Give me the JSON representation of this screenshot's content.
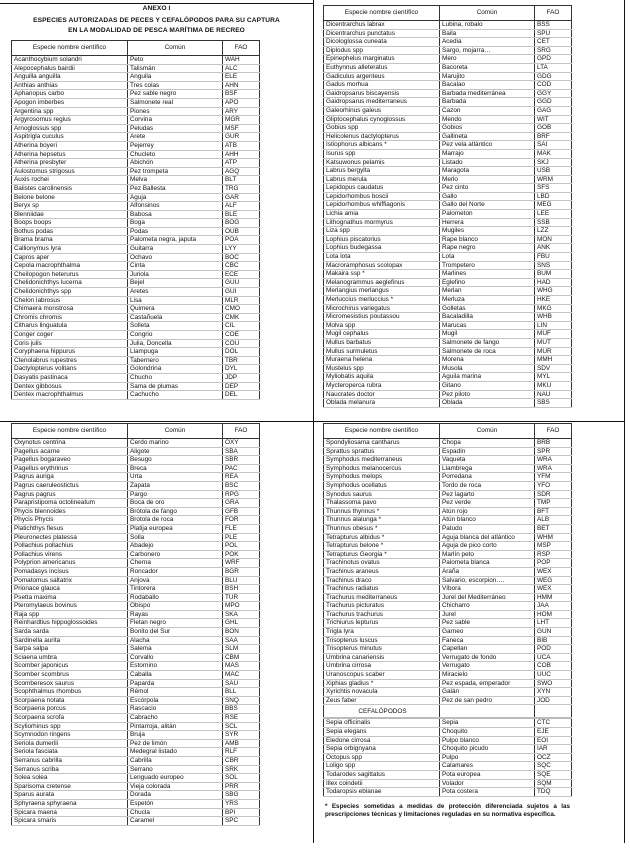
{
  "title": {
    "annex": "ANEXO I",
    "line1": "ESPECIES AUTORIZADAS DE PECES Y CEFALÓPODOS PARA SU CAPTURA",
    "line2": "EN LA MODALIDAD DE PESCA MARÍTIMA DE RECREO"
  },
  "headers": [
    "Especie nombre científico",
    "Común",
    "FAO"
  ],
  "tables": [
    {
      "rows": [
        [
          "Acanthocybium solandri",
          "Peto",
          "WAH"
        ],
        [
          "Alepocephalus bairdii",
          "Talismán",
          "ALC"
        ],
        [
          "Anguilla anguilla",
          "Anguila",
          "ELE"
        ],
        [
          "Anthias anthias",
          "Tres colas",
          "AHN"
        ],
        [
          "Aphanopus carbo",
          "Pez sable negro",
          "BSF"
        ],
        [
          "Apogon imberbes",
          "Salmonete real",
          "APO"
        ],
        [
          "Argentina spp",
          "Piones",
          "ARY"
        ],
        [
          "Argyrosomus regius",
          "Corvina",
          "MGR"
        ],
        [
          "Arnoglossus spp",
          "Peludas",
          "MSF"
        ],
        [
          "Aspitrigla cuculus",
          "Arete",
          "GUR"
        ],
        [
          "Atherina boyeri",
          "Pejerrey",
          "ATB"
        ],
        [
          "Atherina hepsetus",
          "Chucleto",
          "AHH"
        ],
        [
          "Atherina presbyter",
          "Abichón",
          "ATP"
        ],
        [
          "Aulostomus strigosus",
          "Pez trompeta",
          "AGQ"
        ],
        [
          "Auxis rochei",
          "Melva",
          "BLT"
        ],
        [
          "Balistes carolinensis",
          "Pez Ballesta",
          "TRG"
        ],
        [
          "Belone belone",
          "Aguja",
          "GAR"
        ],
        [
          "Beryx sp",
          "Alfonsinos",
          "ALF"
        ],
        [
          "Blenniidae",
          "Babosa",
          "BLE"
        ],
        [
          "Boops boops",
          "Boga",
          "BOG"
        ],
        [
          "Bothus podas",
          "Podas",
          "OUB"
        ],
        [
          "Brama brama",
          "Palometa negra, japuta",
          "POA"
        ],
        [
          "Callionymus lyra",
          "Guitarra",
          "LYY"
        ],
        [
          "Capros aper",
          "Ochavo",
          "BOC"
        ],
        [
          "Cepola macrophthalma",
          "Cinta",
          "CBC"
        ],
        [
          "Cheilopogon heterurus",
          "Juriola",
          "ECE"
        ],
        [
          "Chelidonichthys lucerna",
          "Bejel",
          "GUU"
        ],
        [
          "Chelidonichthys spp",
          "Aretes",
          "GUI"
        ],
        [
          "Chelon labrosus",
          "Lisa",
          "MLR"
        ],
        [
          "Chimaera monstrosa",
          "Quimera",
          "CMO"
        ],
        [
          "Chromis chromis",
          "Castañuela",
          "CMK"
        ],
        [
          "Citharus linguatula",
          "Solleta",
          "CIL"
        ],
        [
          "Conger coger",
          "Congrio",
          "COE"
        ],
        [
          "Coris julis",
          "Julia, Doncella",
          "COU"
        ],
        [
          "Coryphaena hippurus",
          "Llampuga",
          "DOL"
        ],
        [
          "Ctenolabrus rupestres",
          "Tabernero",
          "TBR"
        ],
        [
          "Dactylopterus volitans",
          "Golondrina",
          "DYL"
        ],
        [
          "Dasyatis pastinaca",
          "Chucho",
          "JDP"
        ],
        [
          "Dentex gibbosus",
          "Sama de plumas",
          "DEP"
        ],
        [
          "Dentex macrophthalmus",
          "Cachucho",
          "DEL"
        ]
      ]
    },
    {
      "rows": [
        [
          "Dicentrarchus labrax",
          "Lubina, robalo",
          "BSS"
        ],
        [
          "Dicentrarchus punctatus",
          "Baila",
          "SPU"
        ],
        [
          "Dicologlossa cuneata",
          "Acedia",
          "CET"
        ],
        [
          "Diplodus spp",
          "Sargo, mojarra…",
          "SRG"
        ],
        [
          "Epinephelus marginatus",
          "Mero",
          "GPD"
        ],
        [
          "Euthynnus alleteratus",
          "Bacoreta",
          "LTA"
        ],
        [
          "Gadiculus argenteus",
          "Marujito",
          "GDG"
        ],
        [
          "Gadus morhua",
          "Bacalao",
          "COD"
        ],
        [
          "Gaidropsarus biscayensis",
          "Barbada mediterránea",
          "GGY"
        ],
        [
          "Gaidropsarus mediterraneus",
          "Barbada",
          "GGD"
        ],
        [
          "Galeorhinus galeus",
          "Cazon",
          "GAG"
        ],
        [
          "Gliptocephalus cynoglossus",
          "Mendo",
          "WIT"
        ],
        [
          "Gobius spp",
          "Gobios",
          "GOB"
        ],
        [
          "Helicolenus dactylopterus",
          "Gallineta",
          "BRF"
        ],
        [
          "Istiophorus albicans *",
          "Pez vela atlántico",
          "SAI"
        ],
        [
          "Isurus spp",
          "Marrajo",
          "MAK"
        ],
        [
          "Katsuwonus pelamis",
          "Listado",
          "SKJ"
        ],
        [
          "Labrus bergylta",
          "Maragota",
          "USB"
        ],
        [
          "Labrus merula",
          "Merlo",
          "WRM"
        ],
        [
          "Lepidopus caudatus",
          "Pez cinto",
          "SFS"
        ],
        [
          "Lepidorhombus boscii",
          "Gallo",
          "LBD"
        ],
        [
          "Lepidorhombus whiffiagonis",
          "Gallo del Norte",
          "MEG"
        ],
        [
          "Lichia amia",
          "Palometon",
          "LEE"
        ],
        [
          "Lithognathus mormyrus",
          "Herrera",
          "SSB"
        ],
        [
          "Liza spp",
          "Mugiles",
          "LZZ"
        ],
        [
          "Lophius piscatorius",
          "Rape  blanco",
          "MON"
        ],
        [
          "Lophius budegassa",
          "Rape negro",
          "ANK"
        ],
        [
          "Lota lota",
          "Lota",
          "FBU"
        ],
        [
          "Macroramphosus scolopax",
          "Trompetero",
          "SNS"
        ],
        [
          "Makaira ssp *",
          "Marlines",
          "BUM"
        ],
        [
          "Melanogrammus aeglefinus",
          "Eglefino",
          "HAD"
        ],
        [
          "Merlangius merlangus",
          "Merlan",
          "WHG"
        ],
        [
          "Merluccius merluccius *",
          "Merluza",
          "HKE"
        ],
        [
          "Microchirus variegatus",
          "Golletas",
          "MKG"
        ],
        [
          "Micromesistius poutassou",
          "Bacaladilla",
          "WHB"
        ],
        [
          "Molva spp",
          "Marucas",
          "LIN"
        ],
        [
          "Mugil cephalus",
          "Mugil",
          "MUF"
        ],
        [
          "Mullus barbatus",
          "Salmonete de fango",
          "MUT"
        ],
        [
          "Mullus surmuletus",
          "Salmonete de roca",
          "MUR"
        ],
        [
          "Muraena helena",
          "Morena",
          "MMH"
        ],
        [
          "Mustelus spp",
          "Musola",
          "SDV"
        ],
        [
          "Myliobatis aquila",
          "Aguila marina",
          "MYL"
        ],
        [
          "Mycteroperca rubra",
          "Gitano",
          "MKU"
        ],
        [
          "Naucrates doctor",
          "Pez piloto",
          "NAU"
        ],
        [
          "Oblada melanura",
          "Oblada",
          "SBS"
        ]
      ]
    },
    {
      "rows": [
        [
          "Oxynotus centrina",
          "Cerdo marino",
          "OXY"
        ],
        [
          "Pagellus acarne",
          "Aligote",
          "SBA"
        ],
        [
          "Pagellus bogaraveo",
          "Besugo",
          "SBR"
        ],
        [
          "Pagellus erythrinus",
          "Breca",
          "PAC"
        ],
        [
          "Pagrus auriga",
          "Urta",
          "REA"
        ],
        [
          "Pagrus caeruleostictus",
          "Zapata",
          "BSC"
        ],
        [
          "Pagrus pagrus",
          "Pargo",
          "RPG"
        ],
        [
          "Parapristipoma octolineatum",
          "Boca de oro",
          "GRA"
        ],
        [
          "Phycis blennoides",
          "Brótola de fango",
          "GFB"
        ],
        [
          "Phycis Phycis",
          "Brotola de roca",
          "FOR"
        ],
        [
          "Platichthys flesus",
          "Platija europea",
          "FLE"
        ],
        [
          "Pleuronectes platessa",
          "Solla",
          "PLE"
        ],
        [
          "Pollachius pollachius",
          "Abadejo",
          "POL"
        ],
        [
          "Pollachius virens",
          "Carbonero",
          "POK"
        ],
        [
          "Polyprion americanus",
          "Cherna",
          "WRF"
        ],
        [
          "Pomadasys incisus",
          "Roncador",
          "BGR"
        ],
        [
          "Pomatomus saltatrix",
          "Anjova",
          "BLU"
        ],
        [
          "Prionace glauca",
          "Tintorera",
          "BSH"
        ],
        [
          "Psetta maxima",
          "Rodaballo",
          "TUR"
        ],
        [
          "Pteromylaeus bovinus",
          "Obispo",
          "MPO"
        ],
        [
          "Raja spp",
          "Rayas",
          "SKA"
        ],
        [
          "Reinhardtius hippoglossoides",
          "Fletan negro",
          "GHL"
        ],
        [
          "Sarda sarda",
          "Bonito del Sur",
          "BON"
        ],
        [
          "Sardinella aurita",
          "Alacha",
          "SAA"
        ],
        [
          "Sarpa salpa",
          "Salema",
          "SLM"
        ],
        [
          "Sciaena umbra",
          "Corvallo",
          "CBM"
        ],
        [
          "Scomber japonicus",
          "Estornino",
          "MAS"
        ],
        [
          "Scomber scombrus",
          "Caballa",
          "MAC"
        ],
        [
          "Scomberesox saurus",
          "Paparda",
          "SAU"
        ],
        [
          "Scophthalmus rhombus",
          "Rémol",
          "BLL"
        ],
        [
          "Scorpaena notata",
          "Escórpola",
          "SNQ"
        ],
        [
          "Scorpaena porcus",
          "Rascacio",
          "BBS"
        ],
        [
          "Scorpaena scrofa",
          "Cabracho",
          "RSE"
        ],
        [
          "Scyliorhinus spp",
          "Pintarroja, alitán",
          "SCL"
        ],
        [
          "Scymnodon ringens",
          "Bruja",
          "SYR"
        ],
        [
          "Seriola dumerili",
          "Pez de limón",
          "AMB"
        ],
        [
          "Seriola fasciata",
          "Medegral listado",
          "RLF"
        ],
        [
          "Serranus cabrilla",
          "Cabrilla",
          "CBR"
        ],
        [
          "Serranus scriba",
          "Serrano",
          "SRK"
        ],
        [
          "Solea solea",
          "Lenguado europeo",
          "SOL"
        ],
        [
          "Sparisoma cretense",
          "Vieja colorada",
          "PRR"
        ],
        [
          "Sparus aurata",
          "Dorada",
          "SBG"
        ],
        [
          "Sphyraena sphyraena",
          "Espetón",
          "YRS"
        ],
        [
          "Spicara maena",
          "Chucla",
          "BPI"
        ],
        [
          "Spicara smaris",
          "Caramel",
          "SPC"
        ]
      ]
    },
    {
      "rows": [
        [
          "Spondyliosama cantharus",
          "Chopa",
          "BRB"
        ],
        [
          "Sprattus sprattus",
          "Espadín",
          "SPR"
        ],
        [
          "Symphodus mediterraneus",
          "Vaqueta",
          "WRA"
        ],
        [
          "Symphodus melanocercus",
          "Llambrega",
          "WRA"
        ],
        [
          "Symphodus melops",
          "Porredana",
          "YFM"
        ],
        [
          "Symphodus  ocellatus",
          "Tordo de roca",
          "YFO"
        ],
        [
          "Synodus saurus",
          "Pez lagarto",
          "SDR"
        ],
        [
          "Thalassoma pavo",
          "Pez verde",
          "TMP"
        ],
        [
          "Thunnus thynnus *",
          "Atún rojo",
          "BFT"
        ],
        [
          "Thunnus alalunga *",
          "Atún blanco",
          "ALB"
        ],
        [
          "Thunnus obesus *",
          "Patudo",
          "BET"
        ],
        [
          "Tetrapturus albidus *",
          "Aguja blanca del atlántico",
          "WHM"
        ],
        [
          "Tetrapturus belone *",
          "Aguja de pico corto",
          "MSP"
        ],
        [
          "Tetrapturus Georgia *",
          "Marlín peto",
          "RSP"
        ],
        [
          "Trachinotus ovatus",
          "Palometa blanca",
          "POP"
        ],
        [
          "Trachinus araneus",
          "Araña",
          "WEX"
        ],
        [
          "Trachinus draco",
          "Salvario, escorpion….",
          "WEG"
        ],
        [
          "Trachinus radiatus",
          "Víbora",
          "WEX"
        ],
        [
          "Trachurus mediterraneus",
          "Jurel del Mediterráneo",
          "HMM"
        ],
        [
          "Trachurus picturatus",
          "Chicharro",
          "JAA"
        ],
        [
          "Trachurus trachurus",
          "Jurel",
          "HOM"
        ],
        [
          "Trichiurus lepturus",
          "Pez sable",
          "LHT"
        ],
        [
          "Trigla lyra",
          "Garneo",
          "GUN"
        ],
        [
          "Trisopterus luscus",
          "Faneca",
          "BIB"
        ],
        [
          "Trisopterus minutus",
          "Capellan",
          "POD"
        ],
        [
          "Umbrina canariensis",
          "Verrugato de fondo",
          "UCA"
        ],
        [
          "Umbrina cirrosa",
          "Verrugato",
          "COB"
        ],
        [
          "Uranoscopus scaber",
          "Miracielo",
          "UUC"
        ],
        [
          "Xiphias gladius *",
          "Pez espada, emperador",
          "SWO"
        ],
        [
          "Xyrichtis novacula",
          "Galán",
          "XYN"
        ],
        [
          "Zeus faber",
          "Pez de san pedro",
          "JOD"
        ]
      ],
      "section": "CEFALÓPODOS",
      "section_rows": [
        [
          "Sepia officinalis",
          "Sepia",
          "CTC"
        ],
        [
          "Sepia elegans",
          "Choquito",
          "EJE"
        ],
        [
          "Eledone cirrosa",
          "Pulpo blanco",
          "EOI"
        ],
        [
          "Sepia orbignyana",
          "Choquito picudo",
          "IAR"
        ],
        [
          "Octopus spp",
          "Pulpo",
          "OCZ"
        ],
        [
          "Loligo spp",
          "Calamares",
          "SQC"
        ],
        [
          "Todarodes sagittatus",
          "Pota europea",
          "SQE"
        ],
        [
          "Illex coindetii",
          "Volador",
          "SQM"
        ],
        [
          "Todaropsis eblanae",
          "Pota costera",
          "TDQ"
        ]
      ]
    }
  ],
  "footnote": "* Especies sometidas a medidas de protección diferenciada sujetos a las prescripciones técnicas y limitaciones reguladas en su normativa específica."
}
